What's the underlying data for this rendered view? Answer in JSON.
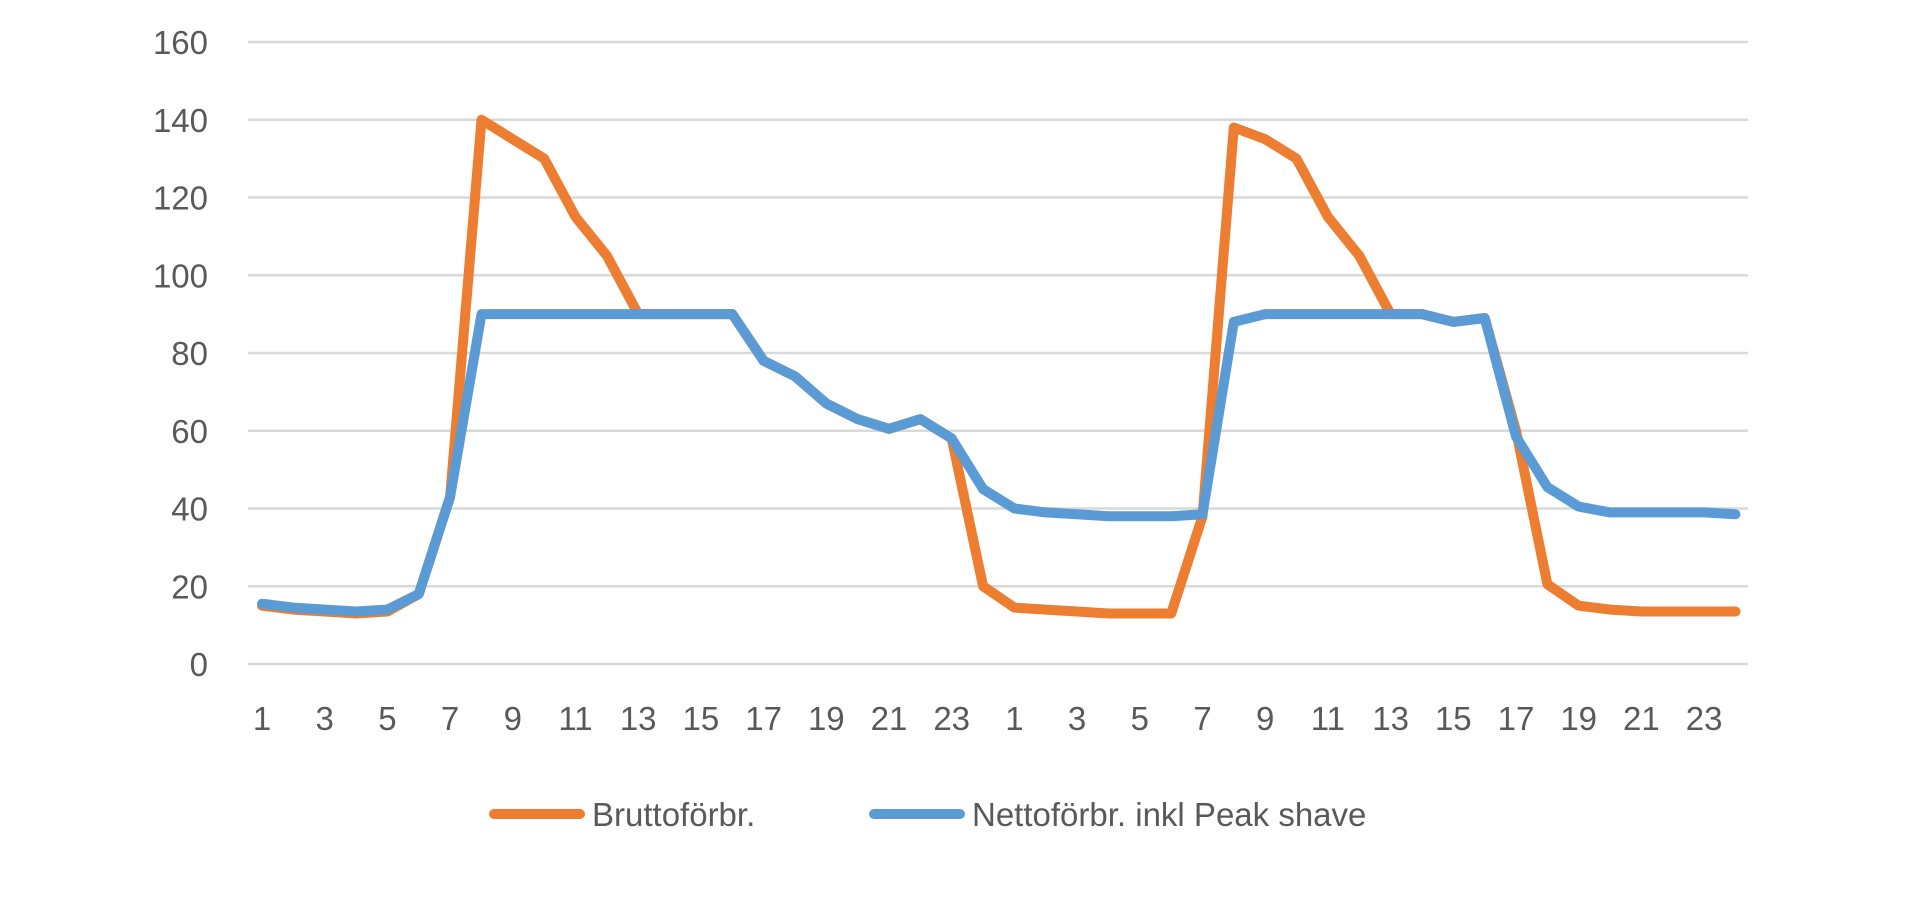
{
  "chart_data": {
    "type": "line",
    "title": "",
    "xlabel": "",
    "ylabel": "",
    "ylim": [
      0,
      160
    ],
    "yticks": [
      0,
      20,
      40,
      60,
      80,
      100,
      120,
      140,
      160
    ],
    "x": [
      "1",
      "2",
      "3",
      "4",
      "5",
      "6",
      "7",
      "8",
      "9",
      "10",
      "11",
      "12",
      "13",
      "14",
      "15",
      "16",
      "17",
      "18",
      "19",
      "20",
      "21",
      "22",
      "23",
      "24",
      "1",
      "2",
      "3",
      "4",
      "5",
      "6",
      "7",
      "8",
      "9",
      "10",
      "11",
      "12",
      "13",
      "14",
      "15",
      "16",
      "17",
      "18",
      "19",
      "20",
      "21",
      "22",
      "23",
      "24"
    ],
    "xtick_labels": [
      "1",
      "",
      "3",
      "",
      "5",
      "",
      "7",
      "",
      "9",
      "",
      "11",
      "",
      "13",
      "",
      "15",
      "",
      "17",
      "",
      "19",
      "",
      "21",
      "",
      "23",
      "",
      "1",
      "",
      "3",
      "",
      "5",
      "",
      "7",
      "",
      "9",
      "",
      "11",
      "",
      "13",
      "",
      "15",
      "",
      "17",
      "",
      "19",
      "",
      "21",
      "",
      "23",
      ""
    ],
    "grid": true,
    "legend_position": "bottom",
    "series": [
      {
        "name": "Bruttoförbr.",
        "color": "#ed7d31",
        "values": [
          15,
          14,
          13.5,
          13,
          13.5,
          18,
          43,
          140,
          135,
          130,
          115,
          105,
          90,
          90,
          90,
          90,
          78,
          74,
          67,
          63,
          60.5,
          63,
          58,
          20,
          14.5,
          14,
          13.5,
          13,
          13,
          13,
          38,
          138,
          135,
          130,
          115,
          105,
          90,
          90,
          88,
          89,
          60,
          20.5,
          15,
          14,
          13.5,
          13.5,
          13.5,
          13.5
        ]
      },
      {
        "name": "Nettoförbr. inkl Peak shave",
        "color": "#5b9bd5",
        "values": [
          15.5,
          14.5,
          14,
          13.5,
          14,
          18,
          43,
          90,
          90,
          90,
          90,
          90,
          90,
          90,
          90,
          90,
          78,
          74,
          67,
          63,
          60.5,
          63,
          58,
          45,
          40,
          39,
          38.5,
          38,
          38,
          38,
          38.5,
          88,
          90,
          90,
          90,
          90,
          90,
          90,
          88,
          89,
          58.5,
          45.5,
          40.5,
          39,
          39,
          39,
          39,
          38.5
        ]
      }
    ]
  }
}
